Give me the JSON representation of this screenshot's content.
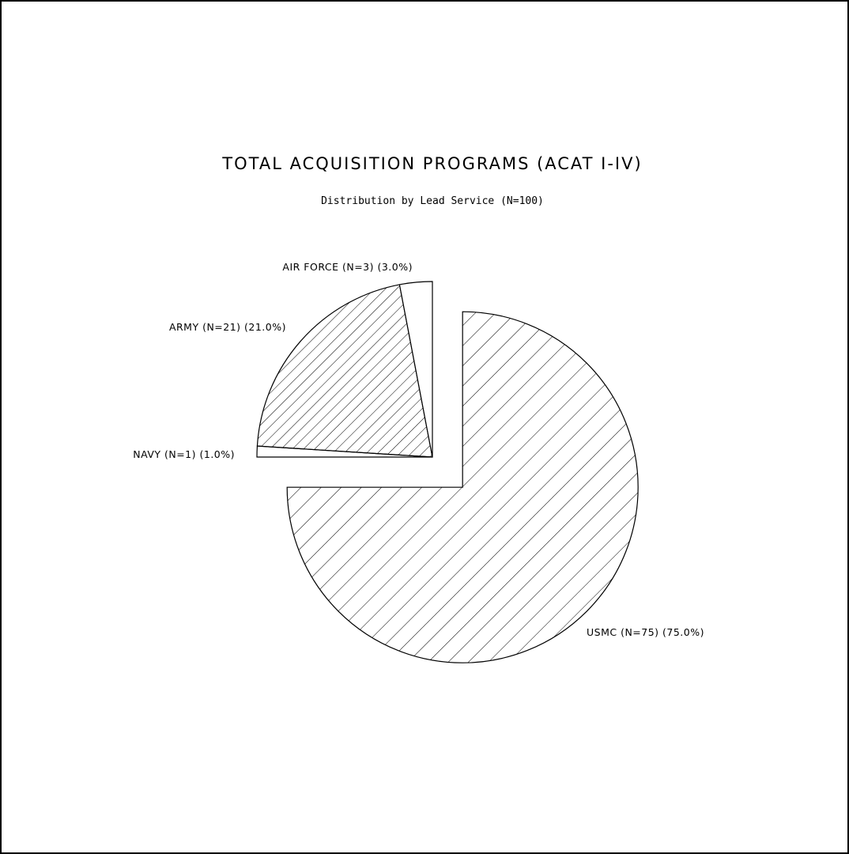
{
  "chart_data": {
    "type": "pie",
    "title": "TOTAL ACQUISITION PROGRAMS (ACAT I-IV)",
    "subtitle": "Distribution by Lead Service (N=100)",
    "slices": [
      {
        "name": "USMC",
        "count": 75,
        "percent": 75.0,
        "label": "USMC (N=75) (75.0%)",
        "pattern": "wide-hatch",
        "exploded": true
      },
      {
        "name": "NAVY",
        "count": 1,
        "percent": 1.0,
        "label": "NAVY (N=1) (1.0%)",
        "pattern": "none",
        "exploded": false
      },
      {
        "name": "ARMY",
        "count": 21,
        "percent": 21.0,
        "label": "ARMY (N=21) (21.0%)",
        "pattern": "dense-hatch",
        "exploded": false
      },
      {
        "name": "AIR FORCE",
        "count": 3,
        "percent": 3.0,
        "label": "AIR FORCE (N=3) (3.0%)",
        "pattern": "none",
        "exploded": false
      }
    ],
    "total": 100,
    "start_angle_deg": 0,
    "direction": "clockwise"
  }
}
